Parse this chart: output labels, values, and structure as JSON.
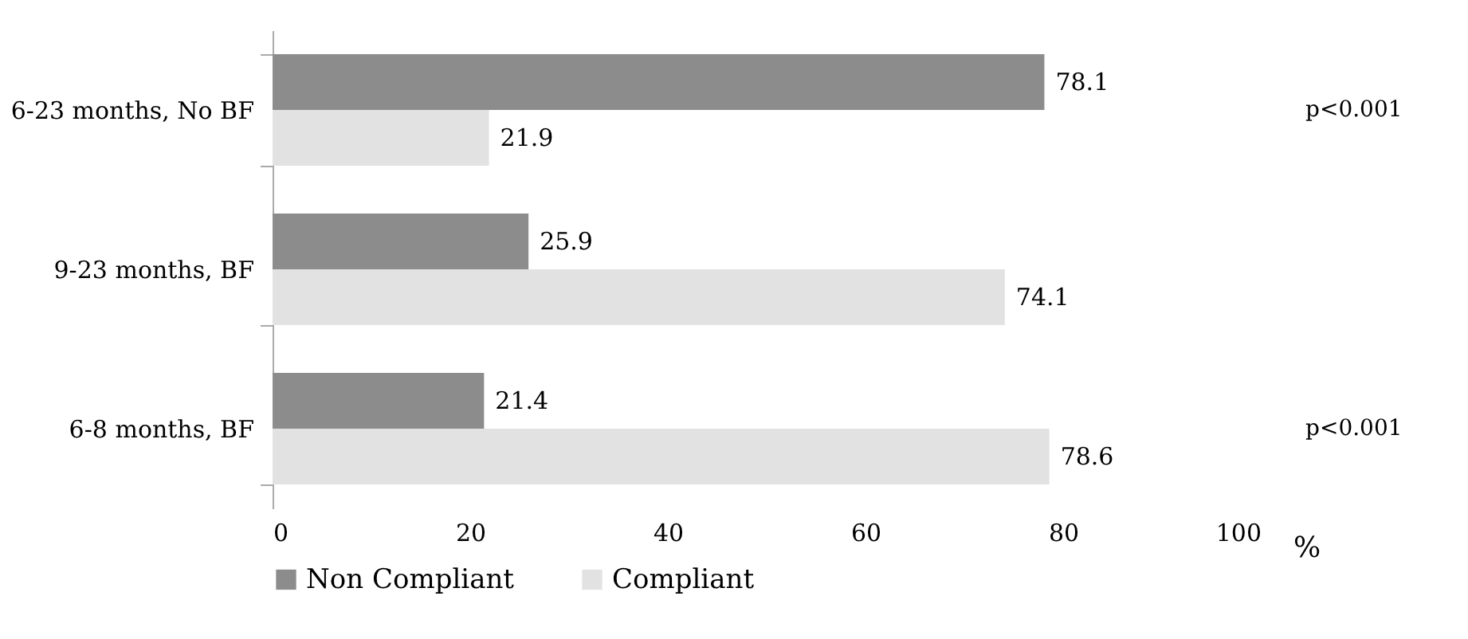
{
  "chart_data": {
    "type": "bar",
    "orientation": "horizontal",
    "categories": [
      "6-23 months, No BF",
      "9-23 months, BF",
      "6-8 months, BF"
    ],
    "series": [
      {
        "name": "Non Compliant",
        "color": "#8c8c8c",
        "values": [
          78.1,
          25.9,
          21.4
        ]
      },
      {
        "name": "Compliant",
        "color": "#e2e2e2",
        "values": [
          21.9,
          74.1,
          78.6
        ]
      }
    ],
    "xlim": [
      0,
      100
    ],
    "xticks": [
      0,
      20,
      40,
      60,
      80,
      100
    ],
    "xlabel": "%",
    "data_labels": true,
    "legend": "bottom",
    "grid": false,
    "annotations": [
      "p<0.001",
      "p<0.001"
    ]
  }
}
